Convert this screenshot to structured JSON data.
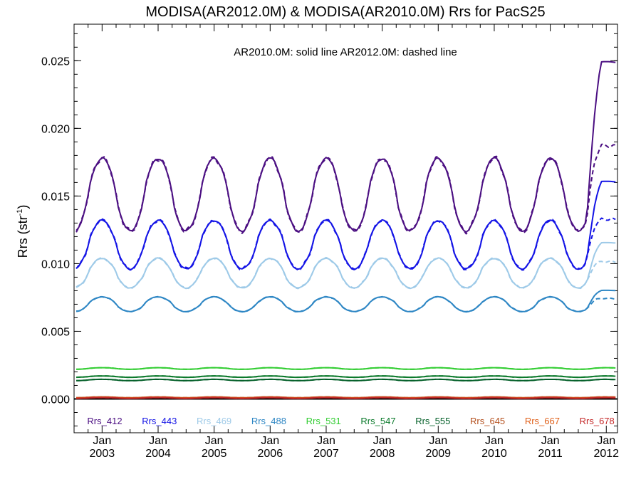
{
  "chart_data": {
    "type": "line",
    "title": "MODISA(AR2012.0M) & MODISA(AR2010.0M)  Rrs for PacS25",
    "ylabel": "Rrs (str",
    "ylabel_sup": "-1",
    "ylabel_close": ")",
    "annotation": "AR2010.0M: solid line   AR2012.0M: dashed line",
    "xlim": [
      2002.5,
      2012.2
    ],
    "ylim": [
      -0.0025,
      0.0277
    ],
    "yticks": [
      0.0,
      0.005,
      0.01,
      0.015,
      0.02,
      0.025
    ],
    "ytick_labels": [
      "0.000",
      "0.005",
      "0.010",
      "0.015",
      "0.020",
      "0.025"
    ],
    "xticks": [
      2003,
      2004,
      2005,
      2006,
      2007,
      2008,
      2009,
      2010,
      2011,
      2012
    ],
    "xtick_month": "Jan",
    "xtick_years": [
      "2003",
      "2004",
      "2005",
      "2006",
      "2007",
      "2008",
      "2009",
      "2010",
      "2011",
      "2012"
    ],
    "zero_line": true,
    "legend_position": "bottom, inside plot",
    "series": [
      {
        "name": "Rrs_412",
        "color": "#4b0f82",
        "mean": 0.0151,
        "amp": 0.0027
      },
      {
        "name": "Rrs_443",
        "color": "#1414e6",
        "mean": 0.0114,
        "amp": 0.0018
      },
      {
        "name": "Rrs_469",
        "color": "#9ecae8",
        "mean": 0.0093,
        "amp": 0.0011
      },
      {
        "name": "Rrs_488",
        "color": "#2d86c4",
        "mean": 0.007,
        "amp": 0.00055
      },
      {
        "name": "Rrs_531",
        "color": "#32cd32",
        "mean": 0.00225,
        "amp": 6e-05
      },
      {
        "name": "Rrs_547",
        "color": "#0c7a2c",
        "mean": 0.00165,
        "amp": 5e-05
      },
      {
        "name": "Rrs_555",
        "color": "#05602a",
        "mean": 0.0014,
        "amp": 5e-05
      },
      {
        "name": "Rrs_645",
        "color": "#b4501e",
        "mean": 0.00012,
        "amp": 3e-05
      },
      {
        "name": "Rrs_667",
        "color": "#e0601a",
        "mean": 9e-05,
        "amp": 3e-05
      },
      {
        "name": "Rrs_678",
        "color": "#c42828",
        "mean": 7e-05,
        "amp": 3e-05
      }
    ],
    "end_values_2012": {
      "Rrs_412": {
        "solid": 0.0248,
        "dashed": 0.0186
      },
      "Rrs_443": {
        "solid": 0.016,
        "dashed": 0.0132
      },
      "Rrs_469": {
        "solid": 0.0115,
        "dashed": 0.0101
      },
      "Rrs_488": {
        "solid": 0.008,
        "dashed": 0.0074
      }
    }
  }
}
